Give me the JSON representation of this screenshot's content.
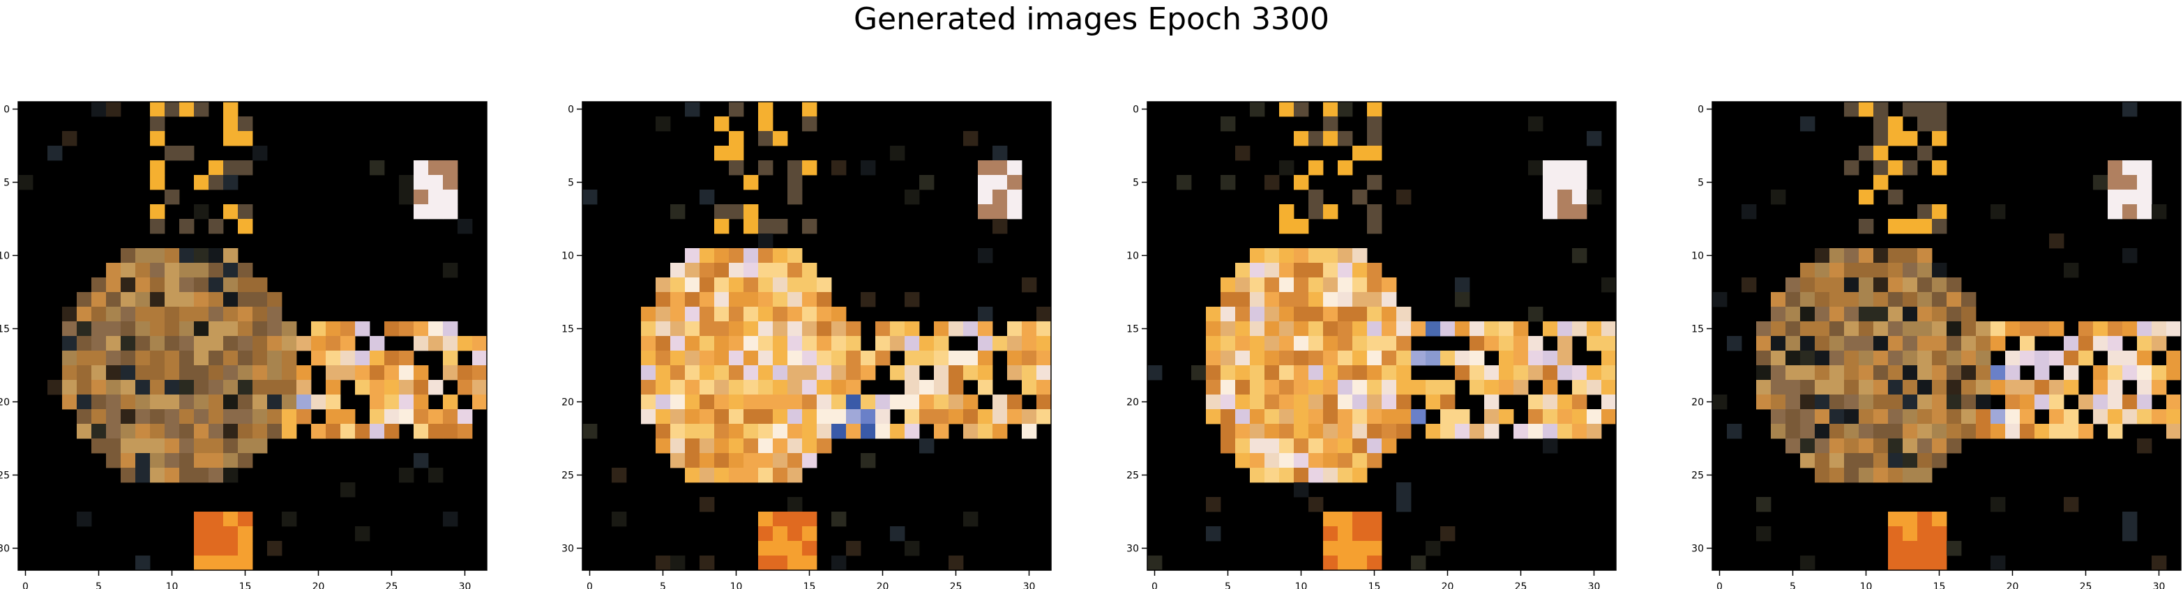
{
  "figure": {
    "title": "Generated images Epoch 3300"
  },
  "chart_data": {
    "type": "heatmap",
    "title": "Generated images Epoch 3300",
    "image_grid": [
      32,
      32
    ],
    "x_ticks": [
      "0",
      "5",
      "10",
      "15",
      "20",
      "25",
      "30"
    ],
    "y_ticks": [
      "0",
      "5",
      "10",
      "15",
      "20",
      "25",
      "30"
    ],
    "xlim": [
      -0.5,
      31.5
    ],
    "ylim": [
      31.5,
      -0.5
    ],
    "panels": [
      {
        "variant": "muted"
      },
      {
        "variant": "bright"
      },
      {
        "variant": "bright"
      },
      {
        "variant": "muted"
      }
    ]
  }
}
